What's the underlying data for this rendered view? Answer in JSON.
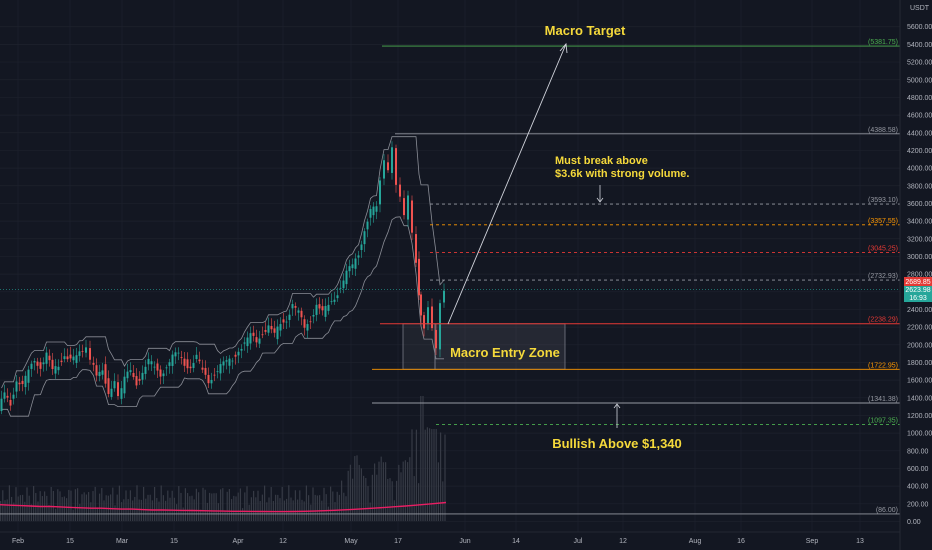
{
  "chart_data": {
    "type": "candlestick",
    "currency": "USDT",
    "y_ticks": [
      0,
      200,
      400,
      600,
      800,
      1000,
      1200,
      1400,
      1600,
      1800,
      2000,
      2200,
      2400,
      2600,
      2800,
      3000,
      3200,
      3400,
      3600,
      3800,
      4000,
      4200,
      4400,
      4600,
      4800,
      5000,
      5200,
      5400,
      5600
    ],
    "x_ticks": [
      "Feb",
      "15",
      "Mar",
      "15",
      "Apr",
      "12",
      "May",
      "17",
      "Jun",
      "14",
      "Jul",
      "12",
      "Aug",
      "16",
      "Sep",
      "13"
    ],
    "price_levels": [
      {
        "label": "(5381.75)",
        "value": 5381.75,
        "color": "#4caf50",
        "style": "solid"
      },
      {
        "label": "(4388.58)",
        "value": 4388.58,
        "color": "#9598a1",
        "style": "solid"
      },
      {
        "label": "(3593.10)",
        "value": 3593.1,
        "color": "#9598a1",
        "style": "dashed"
      },
      {
        "label": "(3357.55)",
        "value": 3357.55,
        "color": "#ff9800",
        "style": "dashed"
      },
      {
        "label": "(3045.25)",
        "value": 3045.25,
        "color": "#e53935",
        "style": "dashed"
      },
      {
        "label": "(2732.93)",
        "value": 2732.93,
        "color": "#9598a1",
        "style": "dashed"
      },
      {
        "label": "(2238.29)",
        "value": 2238.29,
        "color": "#e53935",
        "style": "solid"
      },
      {
        "label": "(1722.95)",
        "value": 1722.95,
        "color": "#ff9800",
        "style": "solid"
      },
      {
        "label": "(1341.38)",
        "value": 1341.38,
        "color": "#9598a1",
        "style": "solid"
      },
      {
        "label": "(1097.35)",
        "value": 1097.35,
        "color": "#4caf50",
        "style": "dashed"
      },
      {
        "label": "(86.00)",
        "value": 86.0,
        "color": "#9598a1",
        "style": "solid"
      }
    ],
    "current_price": {
      "price": "2689.85",
      "secondary": "2623.98",
      "countdown": "16:93"
    },
    "annotations": {
      "macro_target": "Macro Target",
      "must_break_line1": "Must break above",
      "must_break_line2": "$3.6k with strong volume.",
      "macro_entry_zone": "Macro Entry Zone",
      "bullish_above": "Bullish Above $1,340"
    },
    "price_path": [
      [
        0,
        1250
      ],
      [
        6,
        1450
      ],
      [
        12,
        1350
      ],
      [
        18,
        1600
      ],
      [
        24,
        1520
      ],
      [
        30,
        1700
      ],
      [
        36,
        1850
      ],
      [
        42,
        1750
      ],
      [
        48,
        1880
      ],
      [
        54,
        1700
      ],
      [
        60,
        1780
      ],
      [
        66,
        1900
      ],
      [
        72,
        1820
      ],
      [
        78,
        1850
      ],
      [
        84,
        1950
      ],
      [
        88,
        2000
      ],
      [
        92,
        1820
      ],
      [
        98,
        1650
      ],
      [
        104,
        1750
      ],
      [
        110,
        1450
      ],
      [
        116,
        1550
      ],
      [
        120,
        1380
      ],
      [
        126,
        1600
      ],
      [
        132,
        1720
      ],
      [
        138,
        1580
      ],
      [
        144,
        1680
      ],
      [
        150,
        1800
      ],
      [
        156,
        1750
      ],
      [
        162,
        1680
      ],
      [
        168,
        1750
      ],
      [
        174,
        1850
      ],
      [
        180,
        1900
      ],
      [
        186,
        1800
      ],
      [
        192,
        1750
      ],
      [
        198,
        1850
      ],
      [
        204,
        1700
      ],
      [
        210,
        1600
      ],
      [
        216,
        1680
      ],
      [
        222,
        1750
      ],
      [
        228,
        1800
      ],
      [
        234,
        1850
      ],
      [
        240,
        1950
      ],
      [
        246,
        2000
      ],
      [
        252,
        2100
      ],
      [
        258,
        2050
      ],
      [
        264,
        2150
      ],
      [
        270,
        2200
      ],
      [
        276,
        2100
      ],
      [
        282,
        2250
      ],
      [
        288,
        2300
      ],
      [
        294,
        2450
      ],
      [
        300,
        2350
      ],
      [
        306,
        2200
      ],
      [
        312,
        2300
      ],
      [
        318,
        2450
      ],
      [
        324,
        2350
      ],
      [
        330,
        2450
      ],
      [
        336,
        2550
      ],
      [
        342,
        2650
      ],
      [
        348,
        2800
      ],
      [
        354,
        2900
      ],
      [
        360,
        3050
      ],
      [
        366,
        3300
      ],
      [
        372,
        3500
      ],
      [
        378,
        3550
      ],
      [
        382,
        3850
      ],
      [
        386,
        4050
      ],
      [
        390,
        3950
      ],
      [
        394,
        4250
      ],
      [
        398,
        3850
      ],
      [
        402,
        3700
      ],
      [
        406,
        3450
      ],
      [
        410,
        3650
      ],
      [
        414,
        3250
      ],
      [
        418,
        2950
      ],
      [
        420,
        2600
      ],
      [
        422,
        2300
      ],
      [
        426,
        2200
      ],
      [
        430,
        2400
      ],
      [
        434,
        2150
      ],
      [
        438,
        1950
      ],
      [
        442,
        2500
      ],
      [
        446,
        2650
      ]
    ],
    "volume_values": [
      190,
      185,
      180,
      175,
      170,
      170,
      165,
      160,
      155,
      150,
      150,
      145,
      140,
      140,
      135,
      130,
      130,
      128,
      126,
      124,
      122,
      120,
      118,
      116,
      115,
      114,
      113,
      112,
      112,
      113,
      115,
      118,
      122,
      127,
      132,
      138,
      145,
      152,
      160,
      168,
      176,
      185,
      195,
      205,
      215
    ]
  }
}
